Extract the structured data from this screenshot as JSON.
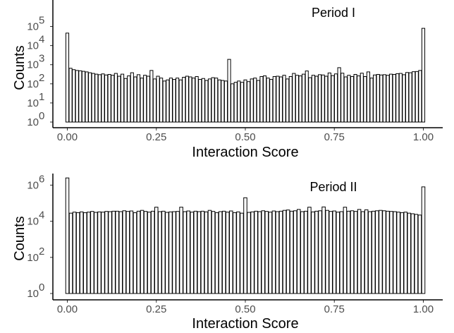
{
  "chart_data": [
    {
      "type": "bar",
      "title": "Period I",
      "xlabel": "Interaction Score",
      "ylabel": "Counts",
      "y_scale": "log10",
      "xlim": [
        0,
        1
      ],
      "ylim": [
        1,
        100000
      ],
      "x_ticks": [
        "0.00",
        "0.25",
        "0.50",
        "0.75",
        "1.00"
      ],
      "y_tick_exponents": [
        "0",
        "1",
        "2",
        "3",
        "4",
        "5"
      ],
      "values": [
        45000,
        650,
        550,
        500,
        480,
        450,
        420,
        380,
        350,
        320,
        300,
        330,
        290,
        310,
        280,
        350,
        250,
        320,
        190,
        260,
        380,
        230,
        300,
        200,
        280,
        250,
        500,
        180,
        250,
        200,
        140,
        160,
        200,
        170,
        200,
        160,
        220,
        250,
        230,
        200,
        240,
        170,
        190,
        150,
        180,
        210,
        200,
        160,
        150,
        140,
        1900,
        100,
        120,
        140,
        120,
        160,
        130,
        180,
        200,
        150,
        240,
        260,
        200,
        170,
        240,
        250,
        230,
        280,
        180,
        240,
        350,
        280,
        260,
        320,
        470,
        210,
        280,
        250,
        300,
        290,
        250,
        370,
        270,
        330,
        700,
        360,
        230,
        280,
        240,
        310,
        260,
        360,
        240,
        420,
        200,
        290,
        310,
        290,
        300,
        280,
        320,
        310,
        340,
        350,
        300,
        390,
        380,
        430,
        440,
        500,
        80000
      ],
      "grid": false,
      "legend": "none"
    },
    {
      "type": "bar",
      "title": "Period II",
      "xlabel": "Interaction Score",
      "ylabel": "Counts",
      "y_scale": "log10",
      "xlim": [
        0,
        1
      ],
      "ylim": [
        1,
        5000000
      ],
      "x_ticks": [
        "0.00",
        "0.25",
        "0.50",
        "0.75",
        "1.00"
      ],
      "y_tick_exponents": [
        "0",
        "2",
        "4",
        "6"
      ],
      "values": [
        2500000,
        28000,
        32000,
        30000,
        33000,
        30000,
        32000,
        35000,
        31000,
        33000,
        32000,
        35000,
        34000,
        36000,
        36000,
        34000,
        38000,
        35000,
        37000,
        30000,
        36000,
        40000,
        35000,
        32000,
        36000,
        60000,
        34000,
        36000,
        31000,
        33000,
        34000,
        35000,
        60000,
        34000,
        37000,
        32000,
        36000,
        34000,
        36000,
        33000,
        40000,
        35000,
        30000,
        34000,
        36000,
        32000,
        37000,
        30000,
        33000,
        28000,
        200000,
        31000,
        33000,
        36000,
        34000,
        38000,
        35000,
        32000,
        37000,
        34000,
        36000,
        40000,
        42000,
        36000,
        38000,
        45000,
        34000,
        36000,
        60000,
        33000,
        36000,
        38000,
        62000,
        40000,
        35000,
        37000,
        32000,
        34000,
        60000,
        36000,
        38000,
        35000,
        45000,
        34000,
        43000,
        34000,
        36000,
        38000,
        40000,
        38000,
        36000,
        35000,
        34000,
        32000,
        30000,
        32000,
        28000,
        26000,
        24000,
        22000,
        800000
      ],
      "grid": false,
      "legend": "none"
    }
  ]
}
